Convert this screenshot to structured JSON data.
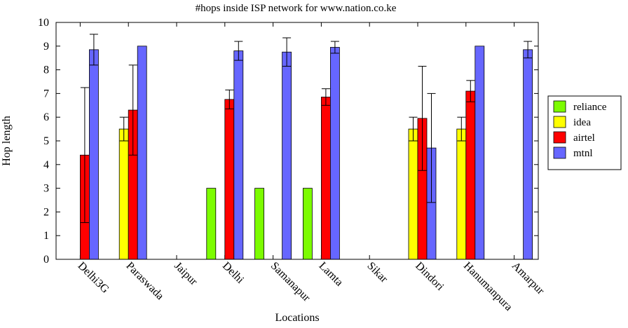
{
  "chart_data": {
    "type": "bar",
    "title": "#hops inside ISP network for www.nation.co.ke",
    "xlabel": "Locations",
    "ylabel": "Hop length",
    "ylim": [
      0,
      10
    ],
    "yticks": [
      "0",
      "1",
      "2",
      "3",
      "4",
      "5",
      "6",
      "7",
      "8",
      "9",
      "10"
    ],
    "categories": [
      "Delhi3G",
      "Paraswada",
      "Jaipur",
      "Delhi",
      "Samanapur",
      "Lamta",
      "Sikar",
      "Dindori",
      "Hanumanpura",
      "Amarpur"
    ],
    "legend_position": "right",
    "series": [
      {
        "name": "reliance",
        "color": "#7cfc00",
        "values": [
          null,
          null,
          null,
          3,
          3,
          3,
          null,
          null,
          null,
          null
        ],
        "errors": [
          null,
          null,
          null,
          null,
          null,
          null,
          null,
          null,
          null,
          null
        ]
      },
      {
        "name": "idea",
        "color": "#ffff00",
        "values": [
          null,
          5.5,
          null,
          null,
          null,
          null,
          null,
          5.5,
          5.5,
          null
        ],
        "errors": [
          null,
          0.5,
          null,
          null,
          null,
          null,
          null,
          0.5,
          0.5,
          null
        ]
      },
      {
        "name": "airtel",
        "color": "#ff0000",
        "values": [
          4.4,
          6.3,
          null,
          6.75,
          null,
          6.85,
          null,
          5.95,
          7.1,
          null
        ],
        "errors": [
          2.85,
          1.9,
          null,
          0.4,
          null,
          0.35,
          null,
          2.2,
          0.45,
          null
        ]
      },
      {
        "name": "mtnl",
        "color": "#6666ff",
        "values": [
          8.85,
          9.0,
          null,
          8.8,
          8.75,
          8.95,
          null,
          4.7,
          9.0,
          8.85
        ],
        "errors": [
          0.65,
          0,
          null,
          0.4,
          0.6,
          0.25,
          null,
          2.3,
          0,
          0.35
        ]
      }
    ]
  }
}
